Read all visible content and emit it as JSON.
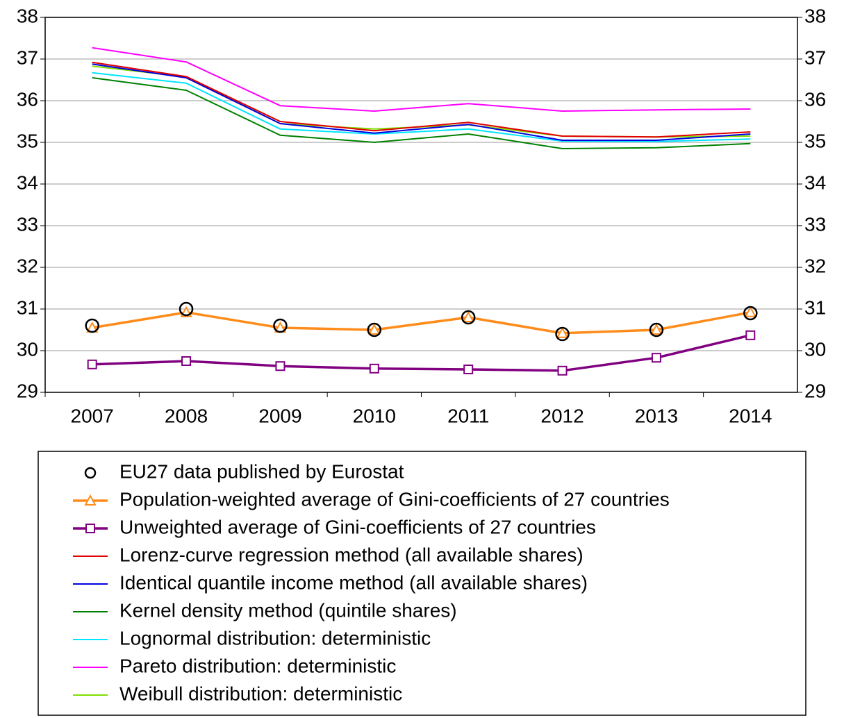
{
  "chart_data": {
    "type": "line",
    "categories": [
      "2007",
      "2008",
      "2009",
      "2010",
      "2011",
      "2012",
      "2013",
      "2014"
    ],
    "ylim": [
      29,
      38
    ],
    "yticks": [
      29,
      30,
      31,
      32,
      33,
      34,
      35,
      36,
      37,
      38
    ],
    "y2lim": [
      29,
      38
    ],
    "y2ticks": [
      29,
      30,
      31,
      32,
      33,
      34,
      35,
      36,
      37,
      38
    ],
    "grid": true,
    "series": [
      {
        "name": "EU27 data published by Eurostat",
        "color": "#000000",
        "marker": "circle",
        "line": false,
        "values": [
          30.6,
          31.0,
          30.6,
          30.5,
          30.8,
          30.4,
          30.5,
          30.9
        ]
      },
      {
        "name": "Population-weighted average of Gini-coefficients of 27 countries",
        "color": "#ff8c1a",
        "marker": "triangle",
        "line": true,
        "values": [
          30.55,
          30.92,
          30.55,
          30.5,
          30.8,
          30.42,
          30.5,
          30.92
        ]
      },
      {
        "name": "Unweighted average of Gini-coefficients of 27 countries",
        "color": "#800080",
        "marker": "square",
        "line": true,
        "values": [
          29.67,
          29.75,
          29.63,
          29.57,
          29.55,
          29.52,
          29.83,
          30.37
        ]
      },
      {
        "name": "Lorenz-curve regression method (all available shares)",
        "color": "#e00000",
        "line": true,
        "values": [
          36.92,
          36.58,
          35.5,
          35.28,
          35.48,
          35.15,
          35.13,
          35.25
        ]
      },
      {
        "name": "Identical quantile income method (all available shares)",
        "color": "#0000e0",
        "line": true,
        "values": [
          36.88,
          36.55,
          35.45,
          35.22,
          35.43,
          35.05,
          35.05,
          35.2
        ]
      },
      {
        "name": "Kernel density method (quintile shares)",
        "color": "#008000",
        "line": true,
        "values": [
          36.55,
          36.25,
          35.17,
          35.0,
          35.2,
          34.85,
          34.87,
          34.97
        ]
      },
      {
        "name": "Lognormal distribution: deterministic",
        "color": "#00e5ff",
        "line": true,
        "values": [
          36.67,
          36.42,
          35.32,
          35.2,
          35.32,
          35.03,
          35.02,
          35.08
        ]
      },
      {
        "name": "Pareto distribution: deterministic",
        "color": "#ff00ff",
        "line": true,
        "values": [
          37.27,
          36.93,
          35.88,
          35.75,
          35.93,
          35.75,
          35.78,
          35.8
        ]
      },
      {
        "name": "Weibull distribution: deterministic",
        "color": "#80e000",
        "line": true,
        "values": [
          36.83,
          36.57,
          35.45,
          35.32,
          35.42,
          35.15,
          35.13,
          35.15
        ]
      }
    ]
  }
}
